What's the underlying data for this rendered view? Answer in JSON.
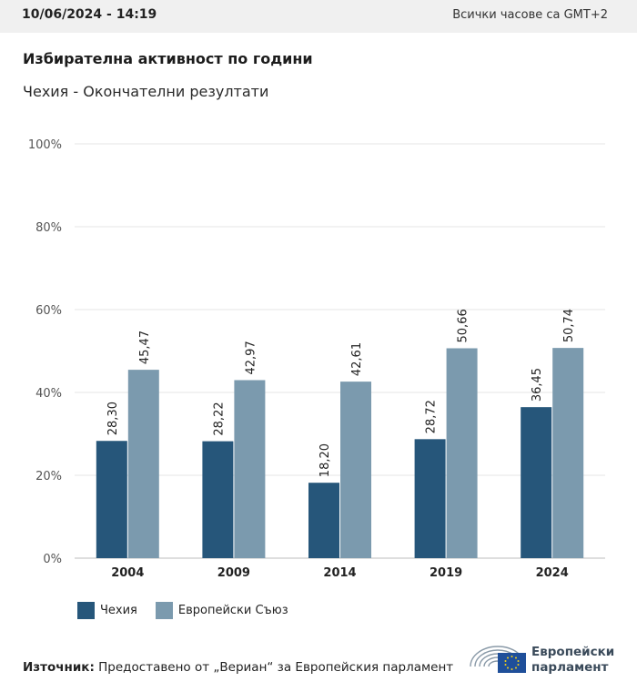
{
  "header": {
    "date": "10/06/2024 - 14:19",
    "timezone": "Всички часове са GMT+2"
  },
  "title": "Избирателна активност по години",
  "subtitle": "Чехия - Окончателни резултати",
  "chart_data": {
    "type": "bar",
    "categories": [
      "2004",
      "2009",
      "2014",
      "2019",
      "2024"
    ],
    "series": [
      {
        "name": "Чехия",
        "color": "#26567a",
        "values": [
          28.3,
          28.22,
          18.2,
          28.72,
          36.45
        ],
        "labels": [
          "28,30",
          "28,22",
          "18,20",
          "28,72",
          "36,45"
        ]
      },
      {
        "name": "Европейски Съюз",
        "color": "#7b9aae",
        "values": [
          45.47,
          42.97,
          42.61,
          50.66,
          50.74
        ],
        "labels": [
          "45,47",
          "42,97",
          "42,61",
          "50,66",
          "50,74"
        ]
      }
    ],
    "ylim": [
      0,
      100
    ],
    "yticks": [
      "0%",
      "20%",
      "40%",
      "60%",
      "80%",
      "100%"
    ],
    "grid": true,
    "legend_position": "bottom-left"
  },
  "source": {
    "label": "Източник:",
    "text": "Предоставено от „Вериан“ за Европейския парламент"
  },
  "logo": {
    "line1": "Европейски",
    "line2": "парламент"
  }
}
